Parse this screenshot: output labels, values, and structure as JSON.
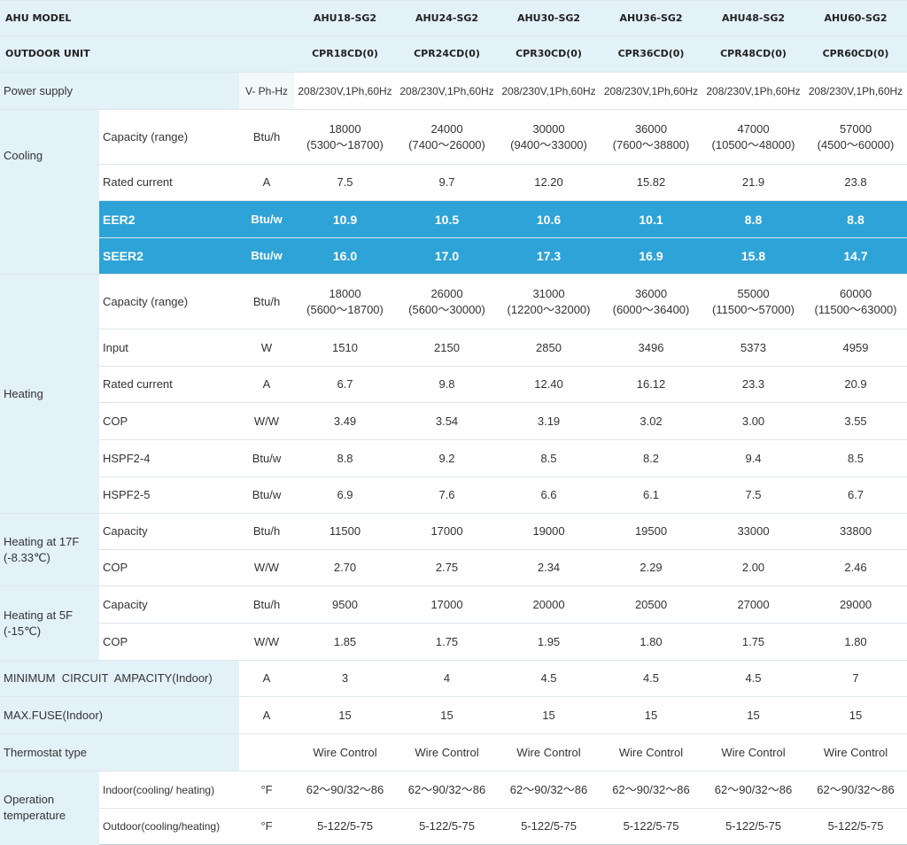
{
  "header": {
    "ahu_label": "AHU MODEL",
    "outdoor_label": "OUTDOOR UNIT",
    "models": [
      "AHU18-SG2",
      "AHU24-SG2",
      "AHU30-SG2",
      "AHU36-SG2",
      "AHU48-SG2",
      "AHU60-SG2"
    ],
    "outdoor_units": [
      "CPR18CD(0)",
      "CPR24CD(0)",
      "CPR30CD(0)",
      "CPR36CD(0)",
      "CPR48CD(0)",
      "CPR60CD(0)"
    ]
  },
  "power_supply": {
    "label": "Power supply",
    "unit": "V- Ph-Hz",
    "values": [
      "208/230V,1Ph,60Hz",
      "208/230V,1Ph,60Hz",
      "208/230V,1Ph,60Hz",
      "208/230V,1Ph,60Hz",
      "208/230V,1Ph,60Hz",
      "208/230V,1Ph,60Hz"
    ]
  },
  "cooling": {
    "group_label": "Cooling",
    "capacity": {
      "label": "Capacity (range)",
      "unit": "Btu/h",
      "values": [
        "18000",
        "24000",
        "30000",
        "36000",
        "47000",
        "57000"
      ],
      "ranges": [
        "(5300～18700)",
        "(7400～26000)",
        "(9400～33000)",
        "(7600～38800)",
        "(10500～48000)",
        "(4500～60000)"
      ]
    },
    "rated_current": {
      "label": "Rated current",
      "unit": "A",
      "values": [
        "7.5",
        "9.7",
        "12.20",
        "15.82",
        "21.9",
        "23.8"
      ]
    },
    "eer2": {
      "label": "EER2",
      "unit": "Btu/w",
      "values": [
        "10.9",
        "10.5",
        "10.6",
        "10.1",
        "8.8",
        "8.8"
      ]
    },
    "seer2": {
      "label": "SEER2",
      "unit": "Btu/w",
      "values": [
        "16.0",
        "17.0",
        "17.3",
        "16.9",
        "15.8",
        "14.7"
      ]
    }
  },
  "heating": {
    "group_label": "Heating",
    "capacity": {
      "label": "Capacity (range)",
      "unit": "Btu/h",
      "values": [
        "18000",
        "26000",
        "31000",
        "36000",
        "55000",
        "60000"
      ],
      "ranges": [
        "(5600～18700)",
        "(5600～30000)",
        "(12200～32000)",
        "(6000～36400)",
        "(11500～57000)",
        "(11500～63000)"
      ]
    },
    "input": {
      "label": "Input",
      "unit": "W",
      "values": [
        "1510",
        "2150",
        "2850",
        "3496",
        "5373",
        "4959"
      ]
    },
    "rated_current": {
      "label": "Rated current",
      "unit": "A",
      "values": [
        "6.7",
        "9.8",
        "12.40",
        "16.12",
        "23.3",
        "20.9"
      ]
    },
    "cop": {
      "label": "COP",
      "unit": "W/W",
      "values": [
        "3.49",
        "3.54",
        "3.19",
        "3.02",
        "3.00",
        "3.55"
      ]
    },
    "hspf2_4": {
      "label": "HSPF2-4",
      "unit": "Btu/w",
      "values": [
        "8.8",
        "9.2",
        "8.5",
        "8.2",
        "9.4",
        "8.5"
      ]
    },
    "hspf2_5": {
      "label": "HSPF2-5",
      "unit": "Btu/w",
      "values": [
        "6.9",
        "7.6",
        "6.6",
        "6.1",
        "7.5",
        "6.7"
      ]
    }
  },
  "heating_17f": {
    "group_label_line1": "Heating at 17F",
    "group_label_line2": "(-8.33℃)",
    "capacity": {
      "label": "Capacity",
      "unit": "Btu/h",
      "values": [
        "11500",
        "17000",
        "19000",
        "19500",
        "33000",
        "33800"
      ]
    },
    "cop": {
      "label": "COP",
      "unit": "W/W",
      "values": [
        "2.70",
        "2.75",
        "2.34",
        "2.29",
        "2.00",
        "2.46"
      ]
    }
  },
  "heating_5f": {
    "group_label_line1": "Heating at 5F",
    "group_label_line2": "(-15℃)",
    "capacity": {
      "label": "Capacity",
      "unit": "Btu/h",
      "values": [
        "9500",
        "17000",
        "20000",
        "20500",
        "27000",
        "29000"
      ]
    },
    "cop": {
      "label": "COP",
      "unit": "W/W",
      "values": [
        "1.85",
        "1.75",
        "1.95",
        "1.80",
        "1.75",
        "1.80"
      ]
    }
  },
  "mca": {
    "label": "MINIMUM  CIRCUIT  AMPACITY(Indoor)",
    "unit": "A",
    "values": [
      "3",
      "4",
      "4.5",
      "4.5",
      "4.5",
      "7"
    ]
  },
  "max_fuse": {
    "label": "MAX.FUSE(Indoor)",
    "unit": "A",
    "values": [
      "15",
      "15",
      "15",
      "15",
      "15",
      "15"
    ]
  },
  "thermostat": {
    "label": "Thermostat type",
    "values": [
      "Wire Control",
      "Wire Control",
      "Wire Control",
      "Wire Control",
      "Wire Control",
      "Wire Control"
    ]
  },
  "operation_temp": {
    "group_label_line1": "Operation",
    "group_label_line2": "temperature",
    "indoor": {
      "label": "Indoor(cooling/ heating)",
      "unit": "°F",
      "values": [
        "62～90/32～86",
        "62～90/32～86",
        "62～90/32～86",
        "62～90/32～86",
        "62～90/32～86",
        "62～90/32～86"
      ]
    },
    "outdoor": {
      "label": "Outdoor(cooling/heating)",
      "unit": "°F",
      "values": [
        "5-122/5-75",
        "5-122/5-75",
        "5-122/5-75",
        "5-122/5-75",
        "5-122/5-75",
        "5-122/5-75"
      ]
    }
  }
}
